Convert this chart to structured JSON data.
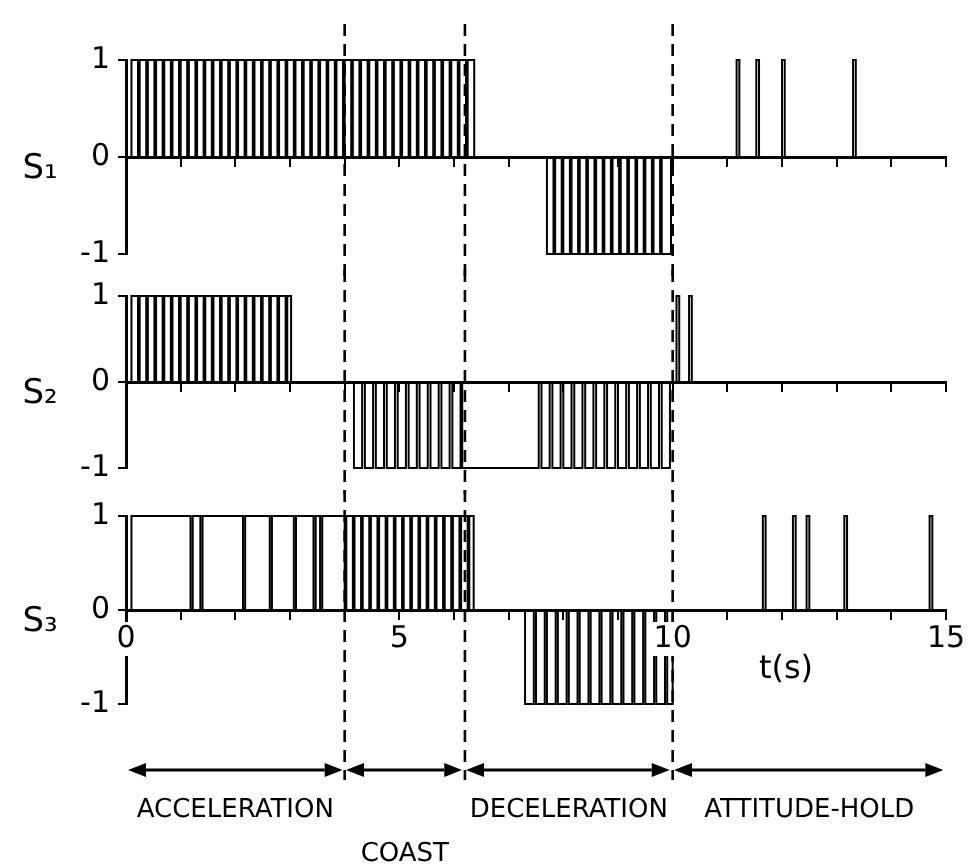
{
  "chart_data": [
    {
      "type": "step",
      "ylabel": "S₁",
      "color": "#000000",
      "xlim": [
        0,
        15
      ],
      "ylim": [
        -1,
        1
      ],
      "yticks": [
        -1,
        0,
        1
      ],
      "xticks": [
        0,
        1,
        2,
        3,
        4,
        5,
        6,
        7,
        8,
        9,
        10,
        11,
        12,
        13,
        14,
        15
      ],
      "tick_labels": "y",
      "ref_lines": [
        {
          "axis": "x",
          "value": 4,
          "line_style": "dashed"
        },
        {
          "axis": "x",
          "value": 6.2,
          "line_style": "dashed"
        },
        {
          "axis": "x",
          "value": 10,
          "line_style": "dashed"
        }
      ],
      "x": [
        0,
        0.1,
        0.22,
        0.25,
        0.37,
        0.4,
        0.52,
        0.55,
        0.67,
        0.7,
        0.82,
        0.85,
        0.97,
        1.0,
        1.12,
        1.15,
        1.27,
        1.3,
        1.42,
        1.45,
        1.57,
        1.6,
        1.72,
        1.75,
        1.87,
        1.9,
        2.02,
        2.05,
        2.17,
        2.2,
        2.32,
        2.35,
        2.47,
        2.5,
        2.62,
        2.65,
        2.77,
        2.8,
        2.92,
        2.95,
        3.07,
        3.1,
        3.22,
        3.25,
        3.37,
        3.4,
        3.52,
        3.55,
        3.67,
        3.7,
        3.82,
        3.85,
        3.97,
        4.0,
        4.12,
        4.15,
        4.27,
        4.3,
        4.42,
        4.45,
        4.57,
        4.6,
        4.72,
        4.75,
        4.87,
        4.9,
        5.02,
        5.05,
        5.17,
        5.2,
        5.32,
        5.35,
        5.47,
        5.5,
        5.62,
        5.65,
        5.77,
        5.8,
        5.92,
        5.95,
        6.07,
        6.1,
        6.22,
        6.25,
        6.37,
        7.7,
        7.82,
        7.85,
        7.97,
        8.0,
        8.12,
        8.15,
        8.27,
        8.3,
        8.42,
        8.45,
        8.57,
        8.6,
        8.72,
        8.75,
        8.87,
        8.9,
        9.02,
        9.05,
        9.17,
        9.2,
        9.32,
        9.35,
        9.47,
        9.5,
        9.62,
        9.65,
        9.77,
        9.8,
        9.97,
        11.17,
        11.22,
        11.53,
        11.58,
        12.0,
        12.05,
        13.3,
        13.35,
        15
      ],
      "values": [
        0,
        1,
        0,
        1,
        0,
        1,
        0,
        1,
        0,
        1,
        0,
        1,
        0,
        1,
        0,
        1,
        0,
        1,
        0,
        1,
        0,
        1,
        0,
        1,
        0,
        1,
        0,
        1,
        0,
        1,
        0,
        1,
        0,
        1,
        0,
        1,
        0,
        1,
        0,
        1,
        0,
        1,
        0,
        1,
        0,
        1,
        0,
        1,
        0,
        1,
        0,
        1,
        0,
        1,
        0,
        1,
        0,
        1,
        0,
        1,
        0,
        1,
        0,
        1,
        0,
        1,
        0,
        1,
        0,
        1,
        0,
        1,
        0,
        1,
        0,
        1,
        0,
        1,
        0,
        1,
        0,
        1,
        0,
        1,
        0,
        -1,
        0,
        -1,
        0,
        -1,
        0,
        -1,
        0,
        -1,
        0,
        -1,
        0,
        -1,
        0,
        -1,
        0,
        -1,
        0,
        -1,
        0,
        -1,
        0,
        -1,
        0,
        -1,
        0,
        -1,
        0,
        -1,
        0,
        1,
        0,
        1,
        0,
        1,
        0,
        1,
        0,
        0
      ]
    },
    {
      "type": "step",
      "ylabel": "S₂",
      "color": "#000000",
      "xlim": [
        0,
        15
      ],
      "ylim": [
        -1,
        1
      ],
      "yticks": [
        -1,
        0,
        1
      ],
      "xticks": [
        0,
        1,
        2,
        3,
        4,
        5,
        6,
        7,
        8,
        9,
        10,
        11,
        12,
        13,
        14,
        15
      ],
      "tick_labels": "y",
      "ref_lines": [
        {
          "axis": "x",
          "value": 4,
          "line_style": "dashed"
        },
        {
          "axis": "x",
          "value": 6.2,
          "line_style": "dashed"
        },
        {
          "axis": "x",
          "value": 10,
          "line_style": "dashed"
        }
      ],
      "x": [
        0,
        0.1,
        0.22,
        0.25,
        0.37,
        0.4,
        0.52,
        0.55,
        0.67,
        0.7,
        0.82,
        0.85,
        0.97,
        1.0,
        1.12,
        1.15,
        1.27,
        1.3,
        1.42,
        1.45,
        1.57,
        1.6,
        1.72,
        1.75,
        1.87,
        1.9,
        2.02,
        2.05,
        2.17,
        2.2,
        2.32,
        2.35,
        2.47,
        2.5,
        2.62,
        2.65,
        2.77,
        2.8,
        2.92,
        2.95,
        3.02,
        4.17,
        4.32,
        4.37,
        4.52,
        4.57,
        4.72,
        4.77,
        4.92,
        4.97,
        5.12,
        5.17,
        5.32,
        5.37,
        5.52,
        5.57,
        5.72,
        5.77,
        5.92,
        5.97,
        6.12,
        6.15,
        7.55,
        7.6,
        7.75,
        7.8,
        7.95,
        8.0,
        8.15,
        8.2,
        8.35,
        8.4,
        8.55,
        8.6,
        8.75,
        8.8,
        8.95,
        9.0,
        9.15,
        9.2,
        9.35,
        9.4,
        9.55,
        9.6,
        9.75,
        9.8,
        9.95,
        10.07,
        10.12,
        10.3,
        10.35,
        15
      ],
      "values": [
        0,
        1,
        0,
        1,
        0,
        1,
        0,
        1,
        0,
        1,
        0,
        1,
        0,
        1,
        0,
        1,
        0,
        1,
        0,
        1,
        0,
        1,
        0,
        1,
        0,
        1,
        0,
        1,
        0,
        1,
        0,
        1,
        0,
        1,
        0,
        1,
        0,
        1,
        0,
        1,
        0,
        -1,
        0,
        -1,
        0,
        -1,
        0,
        -1,
        0,
        -1,
        0,
        -1,
        0,
        -1,
        0,
        -1,
        0,
        -1,
        0,
        -1,
        0,
        -1,
        0,
        -1,
        0,
        -1,
        0,
        -1,
        0,
        -1,
        0,
        -1,
        0,
        -1,
        0,
        -1,
        0,
        -1,
        0,
        -1,
        0,
        -1,
        0,
        -1,
        0,
        -1,
        0,
        1,
        0,
        1,
        0,
        0
      ]
    },
    {
      "type": "step",
      "ylabel": "S₃",
      "xlabel": "t(s)",
      "color": "#000000",
      "xlim": [
        0,
        15
      ],
      "ylim": [
        -1,
        1
      ],
      "yticks": [
        -1,
        0,
        1
      ],
      "xticks": [
        0,
        {
          "value": 1,
          "label": null
        },
        {
          "value": 2,
          "label": null
        },
        {
          "value": 3,
          "label": null
        },
        {
          "value": 4,
          "label": null
        },
        5,
        {
          "value": 6,
          "label": null
        },
        {
          "value": 7,
          "label": null
        },
        {
          "value": 8,
          "label": null
        },
        {
          "value": 9,
          "label": null
        },
        10,
        {
          "value": 11,
          "label": null
        },
        {
          "value": 12,
          "label": null
        },
        {
          "value": 13,
          "label": null
        },
        {
          "value": 14,
          "label": null
        },
        15
      ],
      "ref_lines": [
        {
          "axis": "x",
          "value": 4,
          "line_style": "dashed"
        },
        {
          "axis": "x",
          "value": 6.2,
          "line_style": "dashed"
        },
        {
          "axis": "x",
          "value": 10,
          "line_style": "dashed"
        }
      ],
      "annotations": [
        "ACCELERATION",
        "COAST",
        "DECELERATION",
        "ATTITUDE-HOLD"
      ],
      "x": [
        0,
        0.1,
        1.18,
        1.22,
        1.36,
        1.4,
        2.14,
        2.18,
        2.63,
        2.67,
        3.07,
        3.11,
        3.43,
        3.47,
        3.55,
        3.59,
        4.0,
        4.03,
        4.15,
        4.18,
        4.3,
        4.33,
        4.45,
        4.48,
        4.6,
        4.63,
        4.75,
        4.78,
        4.9,
        4.93,
        5.05,
        5.08,
        5.2,
        5.23,
        5.35,
        5.38,
        5.5,
        5.53,
        5.65,
        5.68,
        5.8,
        5.83,
        5.95,
        5.98,
        6.1,
        6.13,
        6.25,
        6.28,
        6.36,
        7.3,
        7.46,
        7.5,
        7.66,
        7.7,
        7.86,
        7.9,
        8.06,
        8.1,
        8.26,
        8.3,
        8.46,
        8.5,
        8.66,
        8.7,
        8.86,
        8.9,
        9.06,
        9.1,
        9.26,
        9.3,
        9.46,
        9.5,
        9.66,
        9.7,
        9.86,
        9.9,
        10.0,
        11.65,
        11.7,
        12.2,
        12.25,
        12.45,
        12.5,
        13.14,
        13.19,
        14.7,
        14.75,
        15
      ],
      "values": [
        0,
        1,
        0,
        1,
        0,
        1,
        0,
        1,
        0,
        1,
        0,
        1,
        0,
        1,
        0,
        1,
        0,
        1,
        0,
        1,
        0,
        1,
        0,
        1,
        0,
        1,
        0,
        1,
        0,
        1,
        0,
        1,
        0,
        1,
        0,
        1,
        0,
        1,
        0,
        1,
        0,
        1,
        0,
        1,
        0,
        1,
        0,
        1,
        0,
        -1,
        0,
        -1,
        0,
        -1,
        0,
        -1,
        0,
        -1,
        0,
        -1,
        0,
        -1,
        0,
        -1,
        0,
        -1,
        0,
        -1,
        0,
        -1,
        0,
        -1,
        0,
        -1,
        0,
        -1,
        0,
        1,
        0,
        1,
        0,
        1,
        0,
        1,
        0,
        1,
        0,
        0
      ]
    }
  ]
}
